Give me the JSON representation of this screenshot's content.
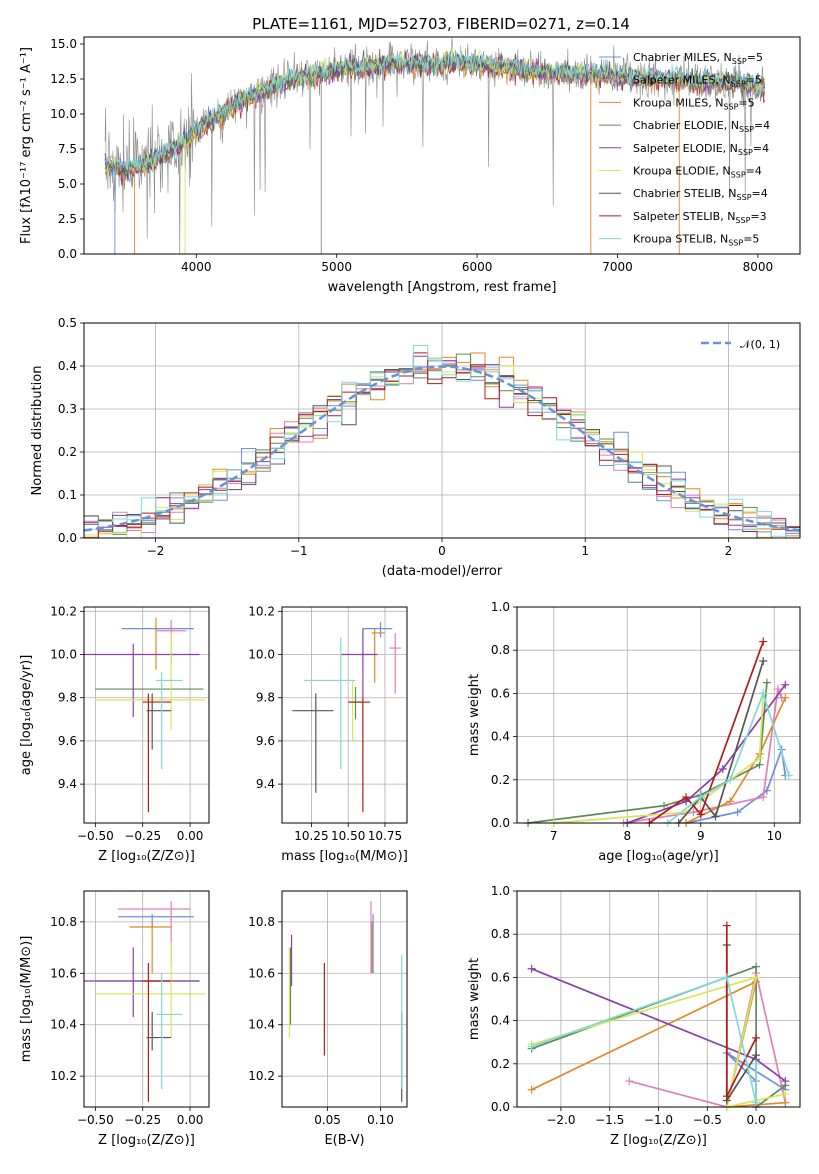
{
  "figure_title": "PLATE=1161, MJD=52703, FIBERID=0271, z=0.14",
  "colors": [
    "#6f8fd8",
    "#e07fb9",
    "#e1892d",
    "#5e8a5a",
    "#8c3fa8",
    "#d7e75a",
    "#555555",
    "#b01c1c",
    "#82d8d8"
  ],
  "chart_data": [
    {
      "id": "spectrum",
      "type": "line",
      "xlabel": "wavelength [Angstrom, rest frame]",
      "ylabel": "Flux [fλ10⁻¹⁷ erg cm⁻² s⁻¹ A⁻¹]",
      "xlim": [
        3200,
        8300
      ],
      "ylim": [
        0,
        15.5
      ],
      "xticks": [
        4000,
        5000,
        6000,
        7000,
        8000
      ],
      "yticks": [
        0.0,
        2.5,
        5.0,
        7.5,
        10.0,
        12.5,
        15.0
      ],
      "grid": false,
      "legend_position": "right",
      "legend": [
        "Chabrier MILES, N_SSP=5",
        "Salpeter MILES, N_SSP=5",
        "Kroupa MILES, N_SSP=5",
        "Chabrier ELODIE, N_SSP=4",
        "Salpeter ELODIE, N_SSP=4",
        "Kroupa ELODIE, N_SSP=4",
        "Chabrier STELIB, N_SSP=4",
        "Salpeter STELIB, N_SSP=3",
        "Kroupa STELIB, N_SSP=5"
      ],
      "continuum": {
        "x": [
          3350,
          3500,
          3700,
          3900,
          4100,
          4300,
          4500,
          4700,
          4900,
          5100,
          5300,
          5500,
          5700,
          5900,
          6100,
          6300,
          6500,
          6700,
          6900,
          7100,
          7300,
          7500,
          7700,
          7900,
          8050
        ],
        "y": [
          6.3,
          6.0,
          6.7,
          8.0,
          9.5,
          10.8,
          11.8,
          12.6,
          13.0,
          13.3,
          13.5,
          13.6,
          13.6,
          13.7,
          13.5,
          13.2,
          13.0,
          12.9,
          12.8,
          12.6,
          12.5,
          12.4,
          12.3,
          12.2,
          11.9
        ]
      }
    },
    {
      "id": "residuals",
      "type": "histogram",
      "xlabel": "(data-model)/error",
      "ylabel": "Normed distribution",
      "xlim": [
        -2.5,
        2.5
      ],
      "ylim": [
        0,
        0.5
      ],
      "xticks": [
        -2,
        -1,
        0,
        1,
        2
      ],
      "yticks": [
        0.0,
        0.1,
        0.2,
        0.3,
        0.4,
        0.5
      ],
      "grid": true,
      "legend_position": "top-right",
      "legend": [
        "𝒩(0, 1)"
      ]
    },
    {
      "id": "z-age",
      "type": "errorbar",
      "xlabel": "Z [log₁₀(Z/Z⊙)]",
      "ylabel": "age  [log₁₀(age/yr)]",
      "xlim": [
        -0.56,
        0.1
      ],
      "ylim": [
        9.22,
        10.22
      ],
      "xticks": [
        -0.5,
        -0.25,
        0.0
      ],
      "yticks": [
        9.4,
        9.6,
        9.8,
        10.0,
        10.2
      ],
      "grid": true
    },
    {
      "id": "mass-age",
      "type": "errorbar",
      "xlabel": "mass [log₁₀(M/M⊙)]",
      "ylabel": "",
      "xlim": [
        10.05,
        10.9
      ],
      "ylim": [
        9.22,
        10.22
      ],
      "xticks": [
        10.25,
        10.5,
        10.75
      ],
      "yticks": [
        9.4,
        9.6,
        9.8,
        10.0,
        10.2
      ],
      "grid": true
    },
    {
      "id": "age-weight",
      "type": "line",
      "xlabel": "age  [log₁₀(age/yr)]",
      "ylabel": "mass weight",
      "xlim": [
        6.5,
        10.35
      ],
      "ylim": [
        0,
        1.0
      ],
      "xticks": [
        7,
        8,
        9,
        10
      ],
      "yticks": [
        0.0,
        0.2,
        0.4,
        0.6,
        0.8,
        1.0
      ],
      "grid": true
    },
    {
      "id": "z-mass",
      "type": "errorbar",
      "xlabel": "Z [log₁₀(Z/Z⊙)]",
      "ylabel": "mass [log₁₀(M/M⊙)]",
      "xlim": [
        -0.56,
        0.1
      ],
      "ylim": [
        10.08,
        10.92
      ],
      "xticks": [
        -0.5,
        -0.25,
        0.0
      ],
      "yticks": [
        10.2,
        10.4,
        10.6,
        10.8
      ],
      "grid": true
    },
    {
      "id": "ebv-mass",
      "type": "errorbar",
      "xlabel": "E(B-V)",
      "ylabel": "",
      "xlim": [
        0.007,
        0.125
      ],
      "ylim": [
        10.08,
        10.92
      ],
      "xticks": [
        0.05,
        0.1
      ],
      "yticks": [
        10.2,
        10.4,
        10.6,
        10.8
      ],
      "grid": true
    },
    {
      "id": "z-weight",
      "type": "line",
      "xlabel": "Z [log₁₀(Z/Z⊙)]",
      "ylabel": "mass weight",
      "xlim": [
        -2.45,
        0.45
      ],
      "ylim": [
        0,
        1.0
      ],
      "xticks": [
        -2.0,
        -1.5,
        -1.0,
        -0.5,
        0.0
      ],
      "yticks": [
        0.0,
        0.2,
        0.4,
        0.6,
        0.8,
        1.0
      ],
      "grid": true
    }
  ],
  "points": {
    "z_age": [
      {
        "z": -0.18,
        "zlo": -0.36,
        "zhi": 0.02,
        "a": 10.12,
        "alo": 10.11,
        "ahi": 10.13
      },
      {
        "z": -0.1,
        "zlo": -0.18,
        "zhi": -0.02,
        "a": 10.11,
        "alo": 9.95,
        "ahi": 10.16
      },
      {
        "z": -0.18,
        "zlo": -0.18,
        "zhi": -0.18,
        "a": 10.05,
        "alo": 9.93,
        "ahi": 10.17
      },
      {
        "z": -0.2,
        "zlo": -0.5,
        "zhi": 0.07,
        "a": 9.84,
        "alo": 9.84,
        "ahi": 9.84
      },
      {
        "z": -0.3,
        "zlo": -0.56,
        "zhi": 0.05,
        "a": 10.0,
        "alo": 9.71,
        "ahi": 10.05
      },
      {
        "z": -0.1,
        "zlo": -0.5,
        "zhi": 0.08,
        "a": 9.79,
        "alo": 9.65,
        "ahi": 10.1
      },
      {
        "z": -0.2,
        "zlo": -0.23,
        "zhi": -0.1,
        "a": 9.74,
        "alo": 9.56,
        "ahi": 9.82
      },
      {
        "z": -0.22,
        "zlo": -0.25,
        "zhi": -0.1,
        "a": 9.78,
        "alo": 9.27,
        "ahi": 9.82
      },
      {
        "z": -0.15,
        "zlo": -0.18,
        "zhi": -0.04,
        "a": 9.88,
        "alo": 9.47,
        "ahi": 9.92
      }
    ],
    "mass_age": [
      {
        "m": 10.72,
        "mlo": 10.6,
        "mhi": 10.8,
        "a": 10.12,
        "alo": 10.08,
        "ahi": 10.15
      },
      {
        "m": 10.82,
        "mlo": 10.78,
        "mhi": 10.86,
        "a": 10.03,
        "alo": 9.82,
        "ahi": 10.1
      },
      {
        "m": 10.68,
        "mlo": 10.66,
        "mhi": 10.75,
        "a": 10.1,
        "alo": 9.87,
        "ahi": 10.12
      },
      {
        "m": 10.55,
        "mlo": 10.5,
        "mhi": 10.6,
        "a": 9.78,
        "alo": 9.7,
        "ahi": 9.85
      },
      {
        "m": 10.6,
        "mlo": 10.45,
        "mhi": 10.7,
        "a": 10.0,
        "alo": 9.8,
        "ahi": 10.12
      },
      {
        "m": 10.53,
        "mlo": 10.5,
        "mhi": 10.55,
        "a": 9.78,
        "alo": 9.6,
        "ahi": 9.88
      },
      {
        "m": 10.28,
        "mlo": 10.12,
        "mhi": 10.4,
        "a": 9.74,
        "alo": 9.36,
        "ahi": 9.82
      },
      {
        "m": 10.6,
        "mlo": 10.5,
        "mhi": 10.65,
        "a": 9.78,
        "alo": 9.27,
        "ahi": 9.8
      },
      {
        "m": 10.45,
        "mlo": 10.2,
        "mhi": 10.55,
        "a": 9.88,
        "alo": 9.47,
        "ahi": 10.08
      }
    ],
    "z_mass": [
      {
        "z": -0.2,
        "zlo": -0.38,
        "zhi": 0.02,
        "m": 10.82,
        "mlo": 10.78,
        "mhi": 10.83
      },
      {
        "z": -0.1,
        "zlo": -0.38,
        "zhi": 0.0,
        "m": 10.85,
        "mlo": 10.64,
        "mhi": 10.88
      },
      {
        "z": -0.2,
        "zlo": -0.32,
        "zhi": -0.1,
        "m": 10.78,
        "mlo": 10.6,
        "mhi": 10.8
      },
      {
        "z": -0.2,
        "zlo": -0.5,
        "zhi": 0.05,
        "m": 10.57,
        "mlo": 10.57,
        "mhi": 10.57
      },
      {
        "z": -0.3,
        "zlo": -0.56,
        "zhi": 0.05,
        "m": 10.57,
        "mlo": 10.43,
        "mhi": 10.7
      },
      {
        "z": -0.1,
        "zlo": -0.5,
        "zhi": 0.08,
        "m": 10.52,
        "mlo": 10.35,
        "mhi": 10.72
      },
      {
        "z": -0.2,
        "zlo": -0.23,
        "zhi": -0.1,
        "m": 10.35,
        "mlo": 10.3,
        "mhi": 10.45
      },
      {
        "z": -0.22,
        "zlo": -0.25,
        "zhi": -0.1,
        "m": 10.57,
        "mlo": 10.1,
        "mhi": 10.64
      },
      {
        "z": -0.15,
        "zlo": -0.18,
        "zhi": -0.04,
        "m": 10.44,
        "mlo": 10.15,
        "mhi": 10.6
      }
    ],
    "ebv_mass": [
      {
        "e": 0.093,
        "mlo": 10.6,
        "mhi": 10.83
      },
      {
        "e": 0.091,
        "mlo": 10.6,
        "mhi": 10.88
      },
      {
        "e": 0.092,
        "mlo": 10.6,
        "mhi": 10.8
      },
      {
        "e": 0.015,
        "mlo": 10.4,
        "mhi": 10.7
      },
      {
        "e": 0.016,
        "mlo": 10.55,
        "mhi": 10.75
      },
      {
        "e": 0.014,
        "mlo": 10.35,
        "mhi": 10.7
      },
      {
        "e": 0.12,
        "mlo": 10.1,
        "mhi": 10.45
      },
      {
        "e": 0.047,
        "mlo": 10.28,
        "mhi": 10.64
      },
      {
        "e": 0.12,
        "mlo": 10.15,
        "mhi": 10.67
      }
    ]
  },
  "weights": {
    "age": [
      [
        [
          8.8,
          0.0
        ],
        [
          9.5,
          0.05
        ],
        [
          9.9,
          0.15
        ],
        [
          10.1,
          0.34
        ],
        [
          10.15,
          0.22
        ]
      ],
      [
        [
          7.95,
          0.0
        ],
        [
          8.9,
          0.05
        ],
        [
          9.85,
          0.12
        ],
        [
          10.05,
          0.62
        ],
        [
          10.1,
          0.58
        ]
      ],
      [
        [
          8.8,
          0.0
        ],
        [
          9.4,
          0.1
        ],
        [
          9.8,
          0.32
        ],
        [
          10.15,
          0.58
        ]
      ],
      [
        [
          6.65,
          0.0
        ],
        [
          8.5,
          0.08
        ],
        [
          9.0,
          0.13
        ],
        [
          9.8,
          0.27
        ],
        [
          9.9,
          0.65
        ]
      ],
      [
        [
          8.0,
          0.0
        ],
        [
          8.8,
          0.1
        ],
        [
          9.3,
          0.25
        ],
        [
          10.15,
          0.64
        ]
      ],
      [
        [
          7.0,
          0.0
        ],
        [
          8.8,
          0.05
        ],
        [
          9.8,
          0.3
        ],
        [
          9.85,
          0.6
        ]
      ],
      [
        [
          8.7,
          0.0
        ],
        [
          9.0,
          0.12
        ],
        [
          9.2,
          0.03
        ],
        [
          9.85,
          0.75
        ]
      ],
      [
        [
          8.3,
          0.0
        ],
        [
          8.8,
          0.12
        ],
        [
          9.0,
          0.04
        ],
        [
          9.85,
          0.84
        ]
      ],
      [
        [
          8.55,
          0.0
        ],
        [
          9.0,
          0.12
        ],
        [
          9.4,
          0.2
        ],
        [
          9.85,
          0.6
        ],
        [
          10.2,
          0.22
        ]
      ]
    ],
    "z": [
      [
        [
          0.0,
          0.0
        ],
        [
          0.0,
          0.12
        ],
        [
          -0.3,
          0.25
        ],
        [
          0.3,
          0.08
        ]
      ],
      [
        [
          0.3,
          0.02
        ],
        [
          0.0,
          0.62
        ],
        [
          -0.3,
          0.0
        ],
        [
          -1.3,
          0.12
        ]
      ],
      [
        [
          -2.3,
          0.08
        ],
        [
          0.0,
          0.58
        ],
        [
          -0.3,
          0.0
        ],
        [
          0.3,
          0.02
        ]
      ],
      [
        [
          -2.3,
          0.27
        ],
        [
          0.0,
          0.65
        ],
        [
          0.0,
          0.0
        ],
        [
          0.3,
          0.1
        ]
      ],
      [
        [
          -2.3,
          0.64
        ],
        [
          0.0,
          0.22
        ],
        [
          0.3,
          0.12
        ]
      ],
      [
        [
          -2.3,
          0.29
        ],
        [
          0.0,
          0.6
        ],
        [
          -0.3,
          0.0
        ],
        [
          0.3,
          0.06
        ]
      ],
      [
        [
          -0.3,
          0.75
        ],
        [
          -0.3,
          0.03
        ],
        [
          0.0,
          0.24
        ]
      ],
      [
        [
          -0.3,
          0.84
        ],
        [
          -0.3,
          0.05
        ],
        [
          0.0,
          0.32
        ]
      ],
      [
        [
          -2.3,
          0.28
        ],
        [
          -0.3,
          0.6
        ],
        [
          0.0,
          0.02
        ],
        [
          0.0,
          0.2
        ]
      ]
    ]
  }
}
